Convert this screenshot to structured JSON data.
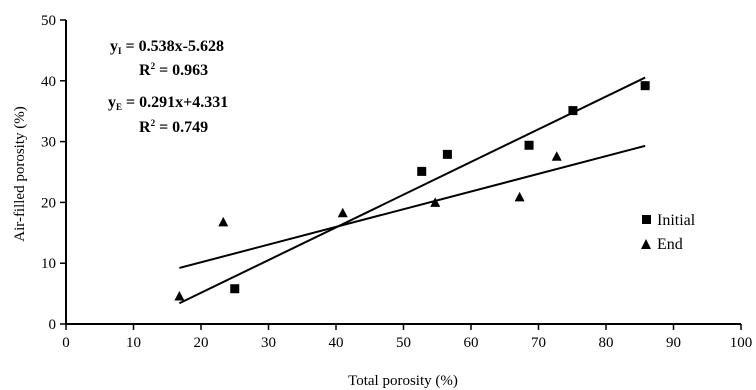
{
  "chart_data": {
    "type": "scatter",
    "xlabel": "Total porosity (%)",
    "ylabel": "Air-filled porosity (%)",
    "xlim": [
      0,
      100
    ],
    "ylim": [
      0,
      50
    ],
    "x_ticks": [
      0,
      10,
      20,
      30,
      40,
      50,
      60,
      70,
      80,
      90,
      100
    ],
    "y_ticks": [
      0,
      10,
      20,
      30,
      40,
      50
    ],
    "grid": false,
    "legend_position": "right",
    "series": [
      {
        "name": "Initial",
        "marker": "square",
        "points": [
          {
            "x": 25.0,
            "y": 5.8
          },
          {
            "x": 52.7,
            "y": 25.1
          },
          {
            "x": 56.5,
            "y": 27.9
          },
          {
            "x": 68.6,
            "y": 29.4
          },
          {
            "x": 75.1,
            "y": 35.1
          },
          {
            "x": 85.8,
            "y": 39.2
          }
        ],
        "fit": {
          "slope": 0.538,
          "intercept": -5.628,
          "x_range": [
            16.8,
            85.8
          ]
        }
      },
      {
        "name": "End",
        "marker": "triangle",
        "points": [
          {
            "x": 16.8,
            "y": 4.6
          },
          {
            "x": 23.3,
            "y": 16.8
          },
          {
            "x": 41.0,
            "y": 18.3
          },
          {
            "x": 54.7,
            "y": 20.0
          },
          {
            "x": 67.2,
            "y": 20.9
          },
          {
            "x": 72.7,
            "y": 27.6
          }
        ],
        "fit": {
          "slope": 0.291,
          "intercept": 4.331,
          "x_range": [
            16.8,
            85.8
          ]
        }
      }
    ],
    "annotations": {
      "initial_eq": {
        "main": "y",
        "sub": "I",
        "rest": " = 0.538x-5.628"
      },
      "initial_r2": {
        "main": "R",
        "sup": "2",
        "rest": " = 0.963"
      },
      "end_eq": {
        "main": "y",
        "sub": "E",
        "rest": " = 0.291x+4.331"
      },
      "end_r2": {
        "main": "R",
        "sup": "2",
        "rest": " = 0.749"
      }
    }
  }
}
